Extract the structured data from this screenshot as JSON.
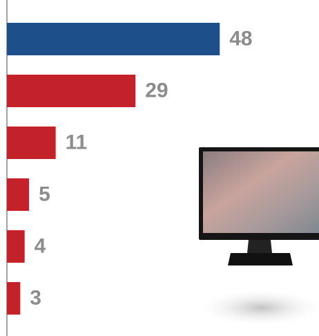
{
  "chart_data": {
    "type": "bar",
    "orientation": "horizontal",
    "categories": [
      null,
      null,
      null,
      null,
      null,
      null
    ],
    "values": [
      48,
      29,
      11,
      5,
      4,
      3
    ],
    "colors": [
      "#1d4f8a",
      "#c4222b",
      "#c4222b",
      "#c4222b",
      "#c4222b",
      "#c4222b"
    ],
    "xlim": [
      0,
      70
    ]
  }
}
